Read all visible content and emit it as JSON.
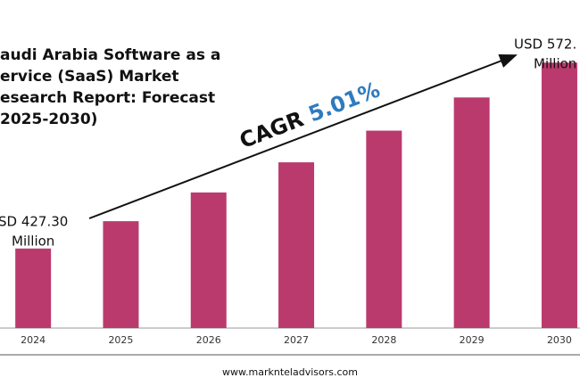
{
  "chart_data": {
    "type": "bar",
    "title": [
      "audi Arabia Software as a",
      "ervice (SaaS) Market",
      "esearch Report: Forecast",
      "2025-2030)"
    ],
    "categories": [
      "2024",
      "2025",
      "2026",
      "2027",
      "2028",
      "2029",
      "2030"
    ],
    "values": [
      427.3,
      448.7,
      471.2,
      494.8,
      519.6,
      545.6,
      572.9
    ],
    "value_labels": [
      [
        "SD 427.30",
        "Million"
      ],
      null,
      null,
      null,
      null,
      null,
      [
        "USD 572.",
        "Million"
      ]
    ],
    "color": "#bb3a6e",
    "ylim": [
      365,
      594
    ],
    "annotation": [
      "CAGR",
      "5.01%"
    ],
    "source": "www.marknteladvisors.com"
  }
}
